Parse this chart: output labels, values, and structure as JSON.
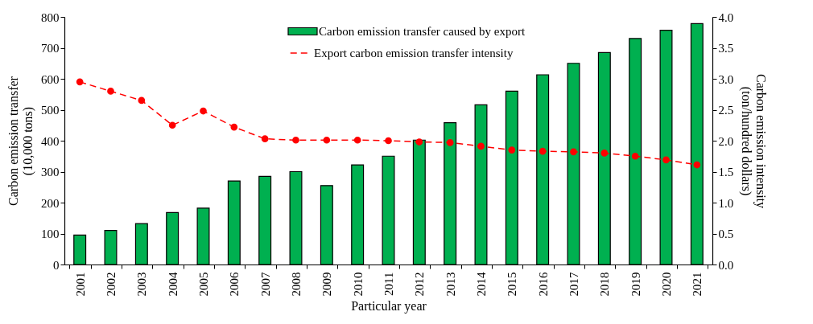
{
  "chart_data": {
    "type": "bar",
    "xlabel": "Particular year",
    "ylabel": "Carbon emission transfer\n(10,000 tons)",
    "y2label": "Carbon emission intensity\n(ton/hundred dollars)",
    "categories": [
      "2001",
      "2002",
      "2003",
      "2004",
      "2005",
      "2006",
      "2007",
      "2008",
      "2009",
      "2010",
      "2011",
      "2012",
      "2013",
      "2014",
      "2015",
      "2016",
      "2017",
      "2018",
      "2019",
      "2020",
      "2021"
    ],
    "series": [
      {
        "name": "Carbon emission transfer caused by export",
        "color": "#00b050",
        "values": [
          95,
          110,
          132,
          168,
          182,
          270,
          285,
          300,
          255,
          322,
          350,
          402,
          458,
          516,
          560,
          613,
          650,
          685,
          730,
          757,
          778
        ]
      },
      {
        "name": "Export carbon emission transfer intensity",
        "type": "line",
        "axis": "y2",
        "color": "#ff0000",
        "marker": "circle",
        "line_style": "dashed",
        "values": [
          2.95,
          2.8,
          2.65,
          2.25,
          2.48,
          2.22,
          2.03,
          2.01,
          2.01,
          2.01,
          2.0,
          1.98,
          1.97,
          1.91,
          1.85,
          1.83,
          1.82,
          1.8,
          1.75,
          1.69,
          1.61
        ]
      }
    ],
    "ylim": [
      0,
      800
    ],
    "yticks": [
      0,
      100,
      200,
      300,
      400,
      500,
      600,
      700,
      800
    ],
    "y2lim": [
      0,
      4
    ],
    "y2ticks": [
      {
        "value": 0,
        "label": "0.0"
      },
      {
        "value": 0.5,
        "label": "0.5"
      },
      {
        "value": 1,
        "label": "1.0"
      },
      {
        "value": 1.5,
        "label": "1.5"
      },
      {
        "value": 2,
        "label": "2.0"
      },
      {
        "value": 2.5,
        "label": "2.5"
      },
      {
        "value": 3,
        "label": "3.0"
      },
      {
        "value": 3.5,
        "label": "3.5"
      },
      {
        "value": 4,
        "label": "4.0"
      }
    ],
    "grid": false,
    "legend": "top"
  }
}
